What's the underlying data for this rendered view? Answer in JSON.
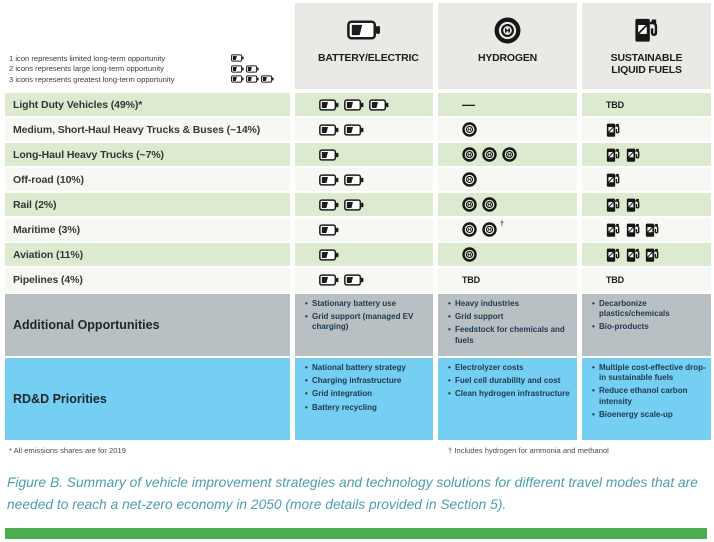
{
  "legend": {
    "lines": [
      {
        "text": "1 icon represents limited long-term opportunity",
        "icons": 1
      },
      {
        "text": "2 icons represents large long-term opportunity",
        "icons": 2
      },
      {
        "text": "3 icons represents greatest long-term opportunity",
        "icons": 3
      }
    ]
  },
  "columns": [
    {
      "id": "battery",
      "label": "BATTERY/ELECTRIC",
      "icon": "battery-icon"
    },
    {
      "id": "hydrogen",
      "label": "HYDROGEN",
      "icon": "hydrogen-icon"
    },
    {
      "id": "fuels",
      "label": "SUSTAINABLE LIQUID FUELS",
      "icon": "fuel-pump-icon"
    }
  ],
  "rows": [
    {
      "label": "Light Duty Vehicles (49%)*",
      "battery": 3,
      "hydrogen": "—",
      "fuels": "TBD"
    },
    {
      "label": "Medium, Short-Haul Heavy Trucks & Buses (~14%)",
      "battery": 2,
      "hydrogen": 1,
      "fuels": 1
    },
    {
      "label": "Long-Haul Heavy Trucks (~7%)",
      "battery": 1,
      "hydrogen": 3,
      "fuels": 2
    },
    {
      "label": "Off-road (10%)",
      "battery": 2,
      "hydrogen": 1,
      "fuels": 1
    },
    {
      "label": "Rail (2%)",
      "battery": 2,
      "hydrogen": 2,
      "fuels": 2
    },
    {
      "label": "Maritime (3%)",
      "battery": 1,
      "hydrogen": 2,
      "hydrogen_note": "†",
      "fuels": 3
    },
    {
      "label": "Aviation (11%)",
      "battery": 1,
      "hydrogen": 1,
      "fuels": 3
    },
    {
      "label": "Pipelines (4%)",
      "battery": 2,
      "hydrogen": "TBD",
      "fuels": "TBD"
    }
  ],
  "additional_opportunities": {
    "label": "Additional Opportunities",
    "battery": [
      "Stationary battery use",
      "Grid support (managed EV charging)"
    ],
    "hydrogen": [
      "Heavy industries",
      "Grid support",
      "Feedstock for chemicals and fuels"
    ],
    "fuels": [
      "Decarbonize plastics/chemicals",
      "Bio-products"
    ]
  },
  "rdd_priorities": {
    "label": "RD&D Priorities",
    "battery": [
      "National battery strategy",
      "Charging infrastructure",
      "Grid integration",
      "Battery recycling"
    ],
    "hydrogen": [
      "Electrolyzer costs",
      "Fuel cell durability and cost",
      "Clean hydrogen infrastructure"
    ],
    "fuels": [
      "Multiple cost-effective drop-in sustainable fuels",
      "Reduce ethanol carbon intensity",
      "Bioenergy scale-up"
    ]
  },
  "footnotes": {
    "left": "* All emissions shares are for 2019",
    "right": "† Includes hydrogen for ammonia and methanol"
  },
  "caption": "Figure B. Summary of vehicle improvement strategies and technology solutions for different travel modes that are needed to reach a net-zero economy in 2050 (more details provided in Section 5).",
  "colors": {
    "row_green": "#dcead0",
    "row_white": "#f7f8f3",
    "header_gray": "#e9eae6",
    "opportunities_gray": "#b9c0c3",
    "priorities_blue": "#74cff2",
    "bottom_bar_green": "#4cae4f",
    "caption_teal": "#4f9cae"
  }
}
